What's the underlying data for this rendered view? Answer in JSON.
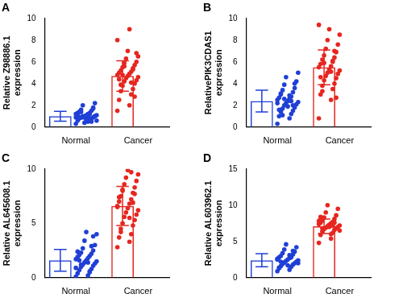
{
  "chart_data": [
    {
      "type": "bar",
      "title": "A",
      "y_label": "Relative Z98886.1 expression",
      "categories": [
        "Normal",
        "Cancer"
      ],
      "values": [
        1.0,
        4.7
      ],
      "errors": [
        0.45,
        1.4
      ],
      "colors": [
        "#1f3fd6",
        "#e6261f"
      ],
      "grid": false,
      "points": [
        [
          0.3,
          0.5,
          0.6,
          0.7,
          0.8,
          0.8,
          0.9,
          0.9,
          1.0,
          1.0,
          1.0,
          1.1,
          1.1,
          1.2,
          1.2,
          1.3,
          1.3,
          1.4,
          1.5,
          1.6,
          1.8,
          2.0,
          2.2,
          0.4,
          0.6,
          0.7,
          0.9,
          1.0,
          1.1,
          1.2,
          0.8,
          0.5,
          1.4,
          1.7,
          0.9,
          1.0
        ],
        [
          1.5,
          2.0,
          2.5,
          3.0,
          3.3,
          3.5,
          3.8,
          4.0,
          4.2,
          4.3,
          4.5,
          4.6,
          4.7,
          4.8,
          4.9,
          5.0,
          5.1,
          5.2,
          5.3,
          5.5,
          5.7,
          5.9,
          6.0,
          6.3,
          6.5,
          7.0,
          8.0,
          9.0,
          4.4,
          4.1,
          3.9,
          5.4,
          4.8,
          2.8,
          5.6,
          6.8
        ]
      ],
      "ylim": [
        0,
        10
      ],
      "yticks": [
        0,
        2,
        4,
        6,
        8,
        10
      ]
    },
    {
      "type": "bar",
      "title": "B",
      "y_label": "RelativePIK3CDAS1 expression",
      "categories": [
        "Normal",
        "Cancer"
      ],
      "values": [
        2.4,
        5.5
      ],
      "errors": [
        1.0,
        1.6
      ],
      "colors": [
        "#1f3fd6",
        "#e6261f"
      ],
      "grid": false,
      "points": [
        [
          0.3,
          0.8,
          1.0,
          1.2,
          1.4,
          1.5,
          1.7,
          1.8,
          2.0,
          2.1,
          2.2,
          2.3,
          2.4,
          2.5,
          2.6,
          2.7,
          2.8,
          3.0,
          3.2,
          3.4,
          3.6,
          3.9,
          4.2,
          4.6,
          5.0,
          1.9,
          2.2,
          2.9,
          1.6,
          2.4,
          3.1,
          2.0,
          1.1,
          4.0,
          2.6
        ],
        [
          0.8,
          2.5,
          3.0,
          3.5,
          3.8,
          4.0,
          4.3,
          4.5,
          4.7,
          4.9,
          5.0,
          5.2,
          5.3,
          5.5,
          5.6,
          5.8,
          6.0,
          6.2,
          6.4,
          6.6,
          6.9,
          7.2,
          7.6,
          8.0,
          8.5,
          9.0,
          9.4,
          5.1,
          4.6,
          6.1,
          3.3,
          7.0,
          5.9,
          2.7
        ]
      ],
      "ylim": [
        0,
        10
      ],
      "yticks": [
        0,
        2,
        4,
        6,
        8,
        10
      ]
    },
    {
      "type": "bar",
      "title": "C",
      "y_label": "Relative AL645608.1 expression",
      "categories": [
        "Normal",
        "Cancer"
      ],
      "values": [
        1.6,
        6.6
      ],
      "errors": [
        1.0,
        1.8
      ],
      "colors": [
        "#1f3fd6",
        "#e6261f"
      ],
      "grid": false,
      "points": [
        [
          0.1,
          0.2,
          0.4,
          0.5,
          0.7,
          0.8,
          1.0,
          1.1,
          1.2,
          1.3,
          1.4,
          1.5,
          1.6,
          1.7,
          1.8,
          1.9,
          2.0,
          2.1,
          2.2,
          2.3,
          2.5,
          2.7,
          3.0,
          3.4,
          4.0,
          4.2,
          0.9,
          1.4,
          2.4,
          0.6,
          1.6,
          2.9,
          1.2,
          3.8
        ],
        [
          2.8,
          3.3,
          3.7,
          4.0,
          4.5,
          4.8,
          5.0,
          5.3,
          5.6,
          5.8,
          6.0,
          6.2,
          6.4,
          6.6,
          6.8,
          7.0,
          7.2,
          7.5,
          7.8,
          8.0,
          8.3,
          8.6,
          8.9,
          9.2,
          9.5,
          9.9,
          6.5,
          5.5,
          7.4,
          9.7,
          4.2,
          6.9,
          8.1,
          7.7
        ]
      ],
      "ylim": [
        0,
        10
      ],
      "yticks": [
        0,
        5,
        10
      ]
    },
    {
      "type": "bar",
      "title": "D",
      "y_label": "Relative AL603962.1 expression",
      "categories": [
        "Normal",
        "Cancer"
      ],
      "values": [
        2.4,
        7.1
      ],
      "errors": [
        0.9,
        1.0
      ],
      "colors": [
        "#1f3fd6",
        "#e6261f"
      ],
      "grid": false,
      "points": [
        [
          0.9,
          1.1,
          1.3,
          1.5,
          1.6,
          1.8,
          1.9,
          2.0,
          2.1,
          2.2,
          2.3,
          2.4,
          2.5,
          2.6,
          2.7,
          2.8,
          2.9,
          3.0,
          3.2,
          3.4,
          3.6,
          3.9,
          4.2,
          4.6,
          2.0,
          1.7,
          2.5,
          3.1,
          1.4,
          2.8,
          2.2,
          3.7
        ],
        [
          4.8,
          5.4,
          5.9,
          6.2,
          6.4,
          6.6,
          6.7,
          6.8,
          6.9,
          7.0,
          7.1,
          7.2,
          7.3,
          7.4,
          7.5,
          7.6,
          7.7,
          7.9,
          8.1,
          8.3,
          8.6,
          9.0,
          9.5,
          10.0,
          6.5,
          7.0,
          7.8,
          6.0,
          8.4,
          7.2,
          6.8,
          7.6
        ]
      ],
      "ylim": [
        0,
        15
      ],
      "yticks": [
        0,
        5,
        10,
        15
      ]
    }
  ]
}
